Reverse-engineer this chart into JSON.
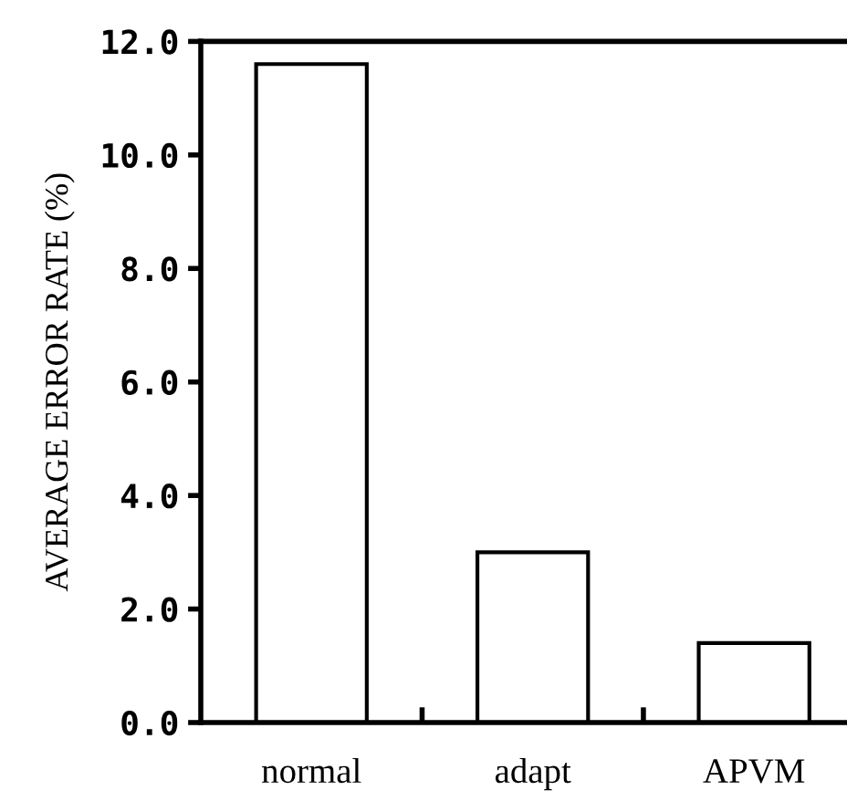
{
  "chart_data": {
    "type": "bar",
    "ylabel": "AVERAGE ERROR RATE (%)",
    "categories": [
      "normal",
      "adapt",
      "APVM"
    ],
    "values": [
      11.6,
      3.0,
      1.4
    ],
    "color": "#ffffff",
    "ylim": [
      0,
      12
    ],
    "yticks": [
      {
        "value": 0,
        "label": "0.0"
      },
      {
        "value": 2,
        "label": "2.0"
      },
      {
        "value": 4,
        "label": "4.0"
      },
      {
        "value": 6,
        "label": "6.0"
      },
      {
        "value": 8,
        "label": "8.0"
      },
      {
        "value": 10,
        "label": "10.0"
      },
      {
        "value": 12,
        "label": "12.0"
      }
    ],
    "grid": false,
    "legend": false
  }
}
